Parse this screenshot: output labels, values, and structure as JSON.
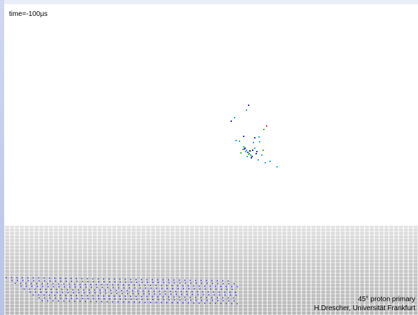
{
  "overlay": {
    "time": "time=-100µs",
    "caption_line_1": "45° proton primary",
    "caption_line_2": "H.Drescher, Universität Frankfurt"
  },
  "colors": {
    "sky": "#ffffff",
    "ground": "#c8c8c8",
    "detector": "#3a3fd8",
    "particle_palette": [
      "#1b2bd0",
      "#22aadd",
      "#33bb44",
      "#dd3333",
      "#111111"
    ]
  },
  "icons": {
    "air_shower": "particle-cloud",
    "detector_array": "dot-grid"
  }
}
